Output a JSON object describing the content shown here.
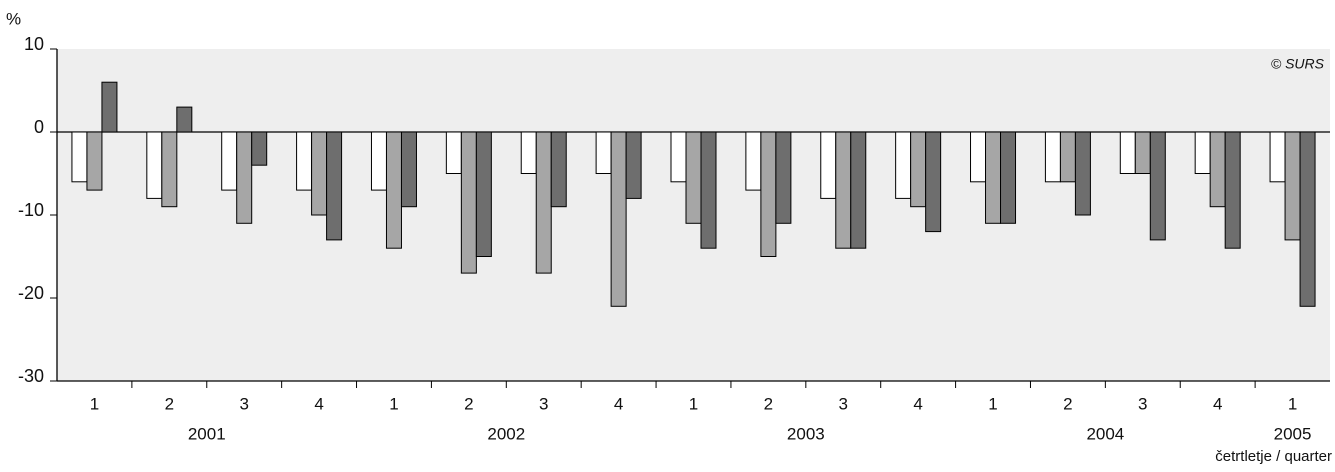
{
  "chart_data": {
    "type": "bar",
    "y_label": "%",
    "x_label": "četrtletje / quarter",
    "annotation": "© SURS",
    "categories": [
      "1",
      "2",
      "3",
      "4",
      "1",
      "2",
      "3",
      "4",
      "1",
      "2",
      "3",
      "4",
      "1",
      "2",
      "3",
      "4",
      "1"
    ],
    "years": [
      "2001",
      "2002",
      "2003",
      "2004",
      "2005"
    ],
    "series": [
      {
        "color": "#ffffff",
        "values": [
          -6,
          -8,
          -7,
          -7,
          -7,
          -5,
          -5,
          -5,
          -6,
          -7,
          -8,
          -8,
          -6,
          -6,
          -5,
          -5,
          -6
        ]
      },
      {
        "color": "#a6a6a6",
        "values": [
          -7,
          -9,
          -11,
          -10,
          -14,
          -17,
          -17,
          -21,
          -11,
          -15,
          -14,
          -9,
          -11,
          -6,
          -5,
          -9,
          -13
        ]
      },
      {
        "color": "#6e6e6e",
        "values": [
          6,
          3,
          -4,
          -13,
          -9,
          -15,
          -9,
          -8,
          -14,
          -11,
          -14,
          -12,
          -11,
          -10,
          -13,
          -14,
          -21
        ]
      }
    ],
    "ylim": [
      -30,
      10
    ],
    "yticks": [
      10,
      0,
      -10,
      -20,
      -30
    ],
    "background": "#eeeeee"
  }
}
